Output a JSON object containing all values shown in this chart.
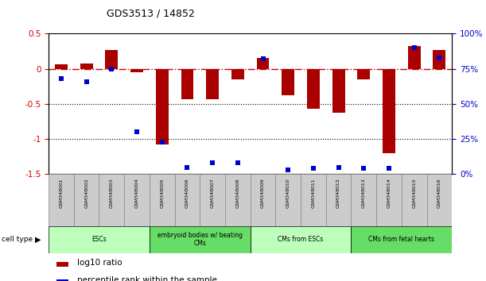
{
  "title": "GDS3513 / 14852",
  "samples": [
    "GSM348001",
    "GSM348002",
    "GSM348003",
    "GSM348004",
    "GSM348005",
    "GSM348006",
    "GSM348007",
    "GSM348008",
    "GSM348009",
    "GSM348010",
    "GSM348011",
    "GSM348012",
    "GSM348013",
    "GSM348014",
    "GSM348015",
    "GSM348016"
  ],
  "log10_ratio": [
    0.07,
    0.08,
    0.27,
    -0.05,
    -1.08,
    -0.43,
    -0.43,
    -0.15,
    0.15,
    -0.38,
    -0.57,
    -0.62,
    -0.15,
    -1.2,
    0.33,
    0.27
  ],
  "percentile_rank": [
    68,
    66,
    75,
    30,
    23,
    5,
    8,
    8,
    82,
    3,
    4,
    5,
    4,
    4,
    90,
    83
  ],
  "ylim_left": [
    -1.5,
    0.5
  ],
  "ylim_right": [
    0,
    100
  ],
  "cell_type_groups": [
    {
      "label": "ESCs",
      "start": 0,
      "end": 3,
      "color": "#bbffbb"
    },
    {
      "label": "embryoid bodies w/ beating\nCMs",
      "start": 4,
      "end": 7,
      "color": "#66dd66"
    },
    {
      "label": "CMs from ESCs",
      "start": 8,
      "end": 11,
      "color": "#bbffbb"
    },
    {
      "label": "CMs from fetal hearts",
      "start": 12,
      "end": 15,
      "color": "#66dd66"
    }
  ],
  "bar_color": "#aa0000",
  "dot_color": "#0000cc",
  "zero_line_color": "#cc0000",
  "dotted_line_color": "#000000",
  "background_color": "#ffffff",
  "tick_label_color_left": "#cc0000",
  "tick_label_color_right": "#0000cc",
  "sample_box_color": "#cccccc",
  "sample_box_edge": "#888888",
  "left_yticks": [
    -1.5,
    -1.0,
    -0.5,
    0.0,
    0.5
  ],
  "left_yticklabels": [
    "-1.5",
    "-1",
    "-0.5",
    "0",
    "0.5"
  ],
  "right_yticks": [
    0,
    25,
    50,
    75,
    100
  ],
  "right_yticklabels": [
    "0%",
    "25%",
    "50%",
    "75%",
    "100%"
  ]
}
